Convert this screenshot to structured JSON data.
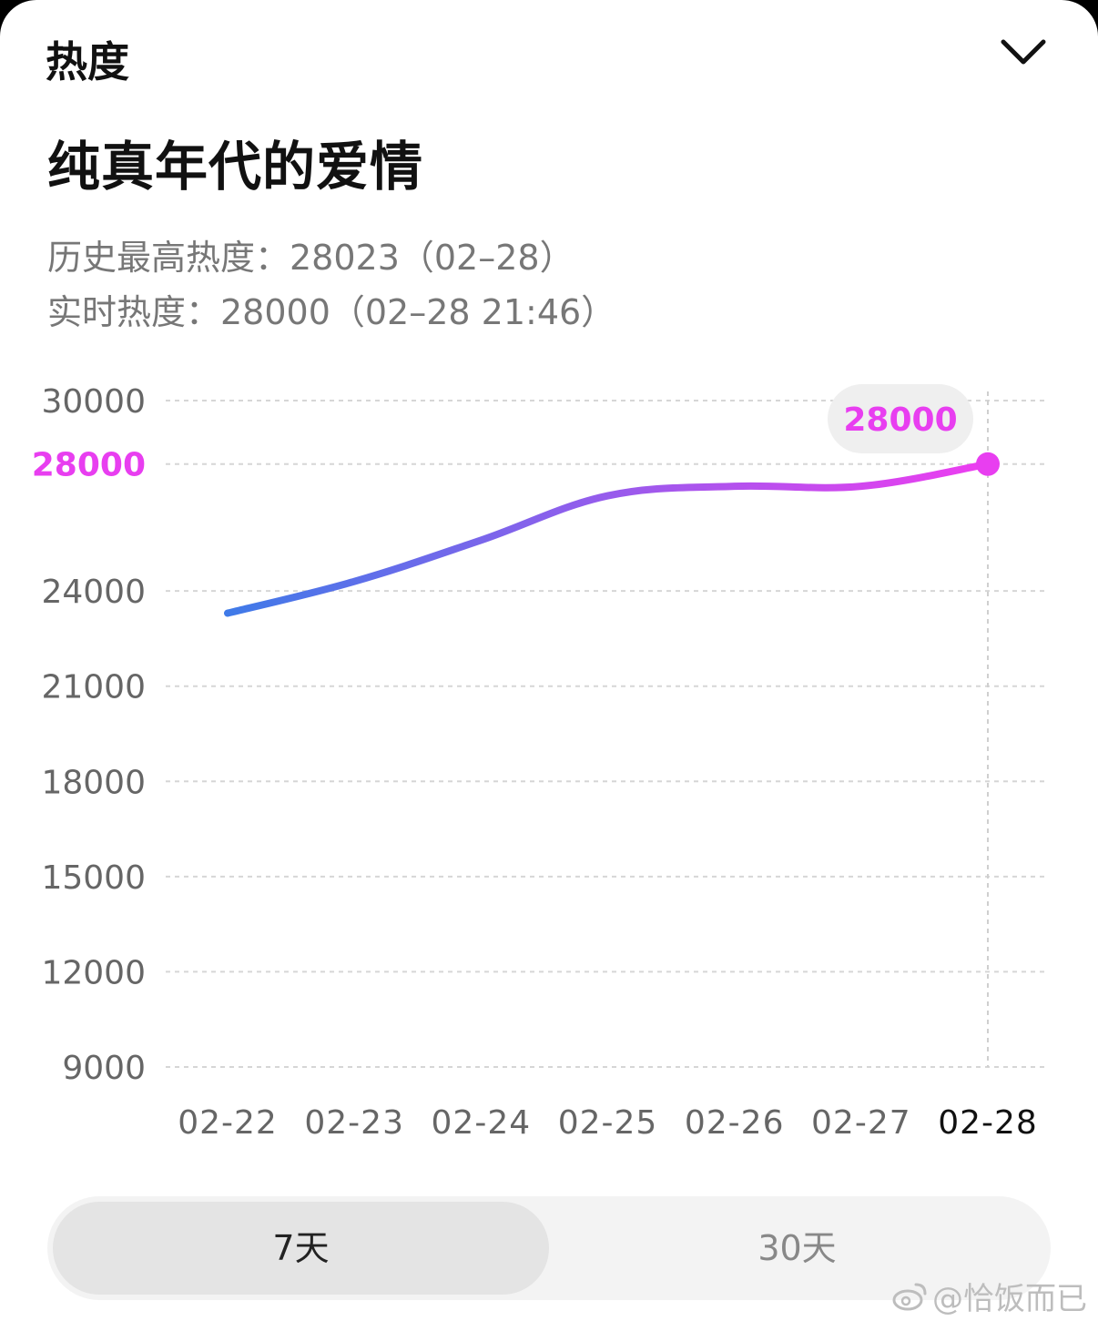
{
  "header": {
    "title": "热度"
  },
  "topic": {
    "title": "纯真年代的爱情"
  },
  "stats": {
    "history_max": "历史最高热度：28023（02–28）",
    "realtime": "实时热度：28000（02–28 21:46）"
  },
  "chart_data": {
    "type": "line",
    "x": [
      "02-22",
      "02-23",
      "02-24",
      "02-25",
      "02-26",
      "02-27",
      "02-28"
    ],
    "series": [
      {
        "values": [
          23300,
          24300,
          25600,
          27000,
          27300,
          27300,
          28000
        ]
      }
    ],
    "y_ticks": [
      9000,
      12000,
      15000,
      18000,
      21000,
      24000,
      28000,
      30000
    ],
    "ylim": [
      9000,
      30000
    ],
    "highlight": {
      "x": "02-28",
      "value": 28000,
      "label": "28000"
    },
    "grid": true,
    "colors": {
      "start": "#3f7ae8",
      "end": "#ee3df0",
      "highlight": "#e83ef0"
    }
  },
  "tabs": [
    {
      "label": "7天",
      "selected": true
    },
    {
      "label": "30天",
      "selected": false
    }
  ],
  "watermark": {
    "text": "@恰饭而已",
    "icon": "weibo-icon"
  }
}
